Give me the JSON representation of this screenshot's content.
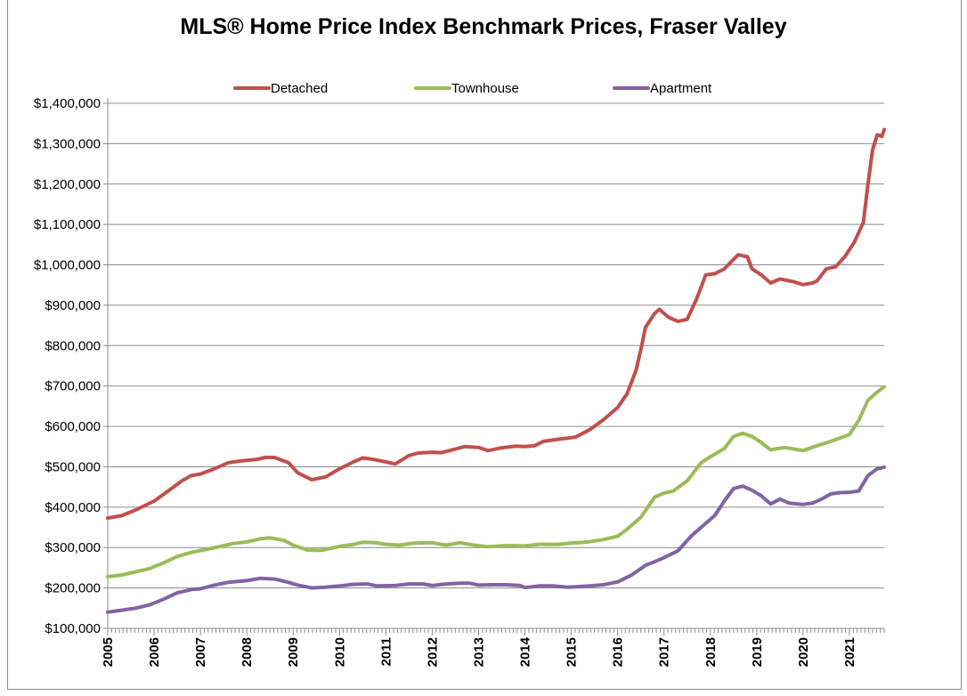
{
  "chart_data": {
    "type": "line",
    "title": "MLS® Home Price Index Benchmark Prices, Fraser Valley",
    "legend_position": "top",
    "grid": true,
    "ylim": [
      100000,
      1400000
    ],
    "y_ticks": [
      "$100,000",
      "$200,000",
      "$300,000",
      "$400,000",
      "$500,000",
      "$600,000",
      "$700,000",
      "$800,000",
      "$900,000",
      "$1,000,000",
      "$1,100,000",
      "$1,200,000",
      "$1,300,000",
      "$1,400,000"
    ],
    "x_ticks": [
      "2005",
      "2006",
      "2007",
      "2008",
      "2009",
      "2010",
      "2011",
      "2012",
      "2013",
      "2014",
      "2015",
      "2016",
      "2017",
      "2018",
      "2019",
      "2020",
      "2021"
    ],
    "xlim": [
      2005.0,
      2021.75
    ],
    "series": [
      {
        "name": "Detached",
        "color": "#c0504d",
        "points": [
          [
            2005.0,
            373000
          ],
          [
            2005.3,
            379000
          ],
          [
            2005.6,
            393000
          ],
          [
            2006.0,
            415000
          ],
          [
            2006.3,
            440000
          ],
          [
            2006.6,
            465000
          ],
          [
            2006.8,
            478000
          ],
          [
            2007.0,
            482000
          ],
          [
            2007.3,
            495000
          ],
          [
            2007.6,
            510000
          ],
          [
            2007.9,
            515000
          ],
          [
            2008.2,
            518000
          ],
          [
            2008.4,
            523000
          ],
          [
            2008.6,
            523000
          ],
          [
            2008.9,
            510000
          ],
          [
            2009.1,
            485000
          ],
          [
            2009.4,
            468000
          ],
          [
            2009.7,
            475000
          ],
          [
            2010.0,
            495000
          ],
          [
            2010.3,
            512000
          ],
          [
            2010.5,
            522000
          ],
          [
            2010.7,
            519000
          ],
          [
            2011.0,
            512000
          ],
          [
            2011.2,
            507000
          ],
          [
            2011.5,
            528000
          ],
          [
            2011.7,
            534000
          ],
          [
            2012.0,
            536000
          ],
          [
            2012.2,
            535000
          ],
          [
            2012.5,
            544000
          ],
          [
            2012.7,
            550000
          ],
          [
            2013.0,
            548000
          ],
          [
            2013.2,
            540000
          ],
          [
            2013.5,
            547000
          ],
          [
            2013.8,
            551000
          ],
          [
            2014.0,
            550000
          ],
          [
            2014.2,
            552000
          ],
          [
            2014.4,
            563000
          ],
          [
            2014.7,
            568000
          ],
          [
            2015.0,
            572000
          ],
          [
            2015.1,
            574000
          ],
          [
            2015.4,
            592000
          ],
          [
            2015.7,
            617000
          ],
          [
            2016.0,
            647000
          ],
          [
            2016.2,
            680000
          ],
          [
            2016.4,
            740000
          ],
          [
            2016.5,
            790000
          ],
          [
            2016.6,
            845000
          ],
          [
            2016.8,
            880000
          ],
          [
            2016.9,
            890000
          ],
          [
            2017.1,
            870000
          ],
          [
            2017.3,
            860000
          ],
          [
            2017.5,
            865000
          ],
          [
            2017.7,
            915000
          ],
          [
            2017.9,
            975000
          ],
          [
            2018.1,
            978000
          ],
          [
            2018.3,
            990000
          ],
          [
            2018.6,
            1025000
          ],
          [
            2018.8,
            1020000
          ],
          [
            2018.9,
            990000
          ],
          [
            2019.1,
            975000
          ],
          [
            2019.3,
            955000
          ],
          [
            2019.5,
            965000
          ],
          [
            2019.8,
            958000
          ],
          [
            2020.0,
            951000
          ],
          [
            2020.2,
            955000
          ],
          [
            2020.3,
            960000
          ],
          [
            2020.5,
            990000
          ],
          [
            2020.7,
            995000
          ],
          [
            2020.9,
            1020000
          ],
          [
            2021.1,
            1055000
          ],
          [
            2021.3,
            1105000
          ],
          [
            2021.4,
            1200000
          ],
          [
            2021.5,
            1285000
          ],
          [
            2021.6,
            1322000
          ],
          [
            2021.7,
            1318000
          ],
          [
            2021.75,
            1335000
          ]
        ]
      },
      {
        "name": "Townhouse",
        "color": "#9bbb59",
        "points": [
          [
            2005.0,
            228000
          ],
          [
            2005.3,
            232000
          ],
          [
            2005.6,
            240000
          ],
          [
            2005.9,
            248000
          ],
          [
            2006.2,
            262000
          ],
          [
            2006.5,
            278000
          ],
          [
            2006.8,
            288000
          ],
          [
            2007.1,
            295000
          ],
          [
            2007.4,
            302000
          ],
          [
            2007.7,
            310000
          ],
          [
            2008.0,
            314000
          ],
          [
            2008.3,
            322000
          ],
          [
            2008.5,
            324000
          ],
          [
            2008.8,
            318000
          ],
          [
            2009.0,
            306000
          ],
          [
            2009.3,
            294000
          ],
          [
            2009.6,
            293000
          ],
          [
            2010.0,
            303000
          ],
          [
            2010.3,
            308000
          ],
          [
            2010.5,
            313000
          ],
          [
            2010.8,
            312000
          ],
          [
            2011.0,
            308000
          ],
          [
            2011.3,
            306000
          ],
          [
            2011.6,
            311000
          ],
          [
            2012.0,
            312000
          ],
          [
            2012.3,
            306000
          ],
          [
            2012.6,
            312000
          ],
          [
            2012.9,
            306000
          ],
          [
            2013.2,
            302000
          ],
          [
            2013.6,
            305000
          ],
          [
            2014.0,
            304000
          ],
          [
            2014.3,
            308000
          ],
          [
            2014.7,
            308000
          ],
          [
            2015.0,
            311000
          ],
          [
            2015.3,
            313000
          ],
          [
            2015.7,
            320000
          ],
          [
            2016.0,
            328000
          ],
          [
            2016.2,
            345000
          ],
          [
            2016.5,
            375000
          ],
          [
            2016.8,
            425000
          ],
          [
            2017.0,
            435000
          ],
          [
            2017.2,
            440000
          ],
          [
            2017.5,
            465000
          ],
          [
            2017.8,
            510000
          ],
          [
            2018.0,
            525000
          ],
          [
            2018.3,
            545000
          ],
          [
            2018.5,
            575000
          ],
          [
            2018.7,
            583000
          ],
          [
            2018.9,
            575000
          ],
          [
            2019.1,
            560000
          ],
          [
            2019.3,
            542000
          ],
          [
            2019.6,
            548000
          ],
          [
            2020.0,
            540000
          ],
          [
            2020.3,
            552000
          ],
          [
            2020.6,
            563000
          ],
          [
            2021.0,
            580000
          ],
          [
            2021.2,
            615000
          ],
          [
            2021.4,
            665000
          ],
          [
            2021.6,
            685000
          ],
          [
            2021.75,
            698000
          ]
        ]
      },
      {
        "name": "Apartment",
        "color": "#8064a2",
        "points": [
          [
            2005.0,
            140000
          ],
          [
            2005.3,
            145000
          ],
          [
            2005.6,
            150000
          ],
          [
            2005.9,
            158000
          ],
          [
            2006.2,
            172000
          ],
          [
            2006.5,
            188000
          ],
          [
            2006.8,
            196000
          ],
          [
            2007.0,
            198000
          ],
          [
            2007.3,
            207000
          ],
          [
            2007.6,
            214000
          ],
          [
            2008.0,
            218000
          ],
          [
            2008.3,
            224000
          ],
          [
            2008.6,
            222000
          ],
          [
            2008.9,
            214000
          ],
          [
            2009.1,
            207000
          ],
          [
            2009.4,
            200000
          ],
          [
            2009.7,
            202000
          ],
          [
            2010.0,
            205000
          ],
          [
            2010.3,
            209000
          ],
          [
            2010.6,
            210000
          ],
          [
            2010.8,
            205000
          ],
          [
            2011.2,
            206000
          ],
          [
            2011.5,
            210000
          ],
          [
            2011.8,
            210000
          ],
          [
            2012.0,
            206000
          ],
          [
            2012.3,
            210000
          ],
          [
            2012.6,
            212000
          ],
          [
            2012.8,
            212000
          ],
          [
            2013.0,
            207000
          ],
          [
            2013.3,
            208000
          ],
          [
            2013.6,
            208000
          ],
          [
            2013.9,
            206000
          ],
          [
            2014.0,
            201000
          ],
          [
            2014.3,
            205000
          ],
          [
            2014.6,
            205000
          ],
          [
            2014.9,
            202000
          ],
          [
            2015.1,
            203000
          ],
          [
            2015.4,
            205000
          ],
          [
            2015.7,
            208000
          ],
          [
            2016.0,
            215000
          ],
          [
            2016.3,
            232000
          ],
          [
            2016.6,
            256000
          ],
          [
            2016.8,
            265000
          ],
          [
            2017.0,
            275000
          ],
          [
            2017.3,
            292000
          ],
          [
            2017.6,
            330000
          ],
          [
            2017.9,
            360000
          ],
          [
            2018.1,
            380000
          ],
          [
            2018.3,
            415000
          ],
          [
            2018.5,
            446000
          ],
          [
            2018.7,
            452000
          ],
          [
            2018.9,
            442000
          ],
          [
            2019.1,
            428000
          ],
          [
            2019.3,
            408000
          ],
          [
            2019.5,
            420000
          ],
          [
            2019.7,
            410000
          ],
          [
            2020.0,
            407000
          ],
          [
            2020.2,
            410000
          ],
          [
            2020.4,
            420000
          ],
          [
            2020.6,
            433000
          ],
          [
            2020.8,
            436000
          ],
          [
            2021.0,
            437000
          ],
          [
            2021.2,
            440000
          ],
          [
            2021.4,
            478000
          ],
          [
            2021.6,
            495000
          ],
          [
            2021.75,
            499000
          ]
        ]
      }
    ]
  }
}
